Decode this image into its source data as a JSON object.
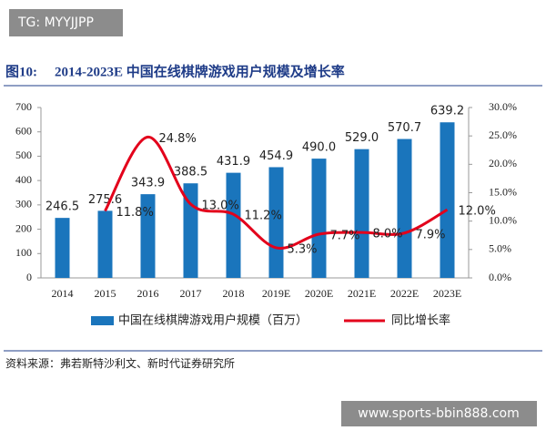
{
  "overlays": {
    "top_left": "TG: MYYJJPP",
    "bottom_right": "www.sports-bbin888.com"
  },
  "chart_data": {
    "type": "combo",
    "figure_label": "图10:",
    "title": "2014-2023E 中国在线棋牌游戏用户规模及增长率",
    "source": "资料来源：弗若斯特沙利文、新时代证券研究所",
    "categories": [
      "2014",
      "2015",
      "2016",
      "2017",
      "2018",
      "2019E",
      "2020E",
      "2021E",
      "2022E",
      "2023E"
    ],
    "series": [
      {
        "name": "中国在线棋牌游戏用户规模（百万）",
        "type": "bar",
        "color": "#1a75bc",
        "values": [
          246.5,
          275.6,
          343.9,
          388.5,
          431.9,
          454.9,
          490.0,
          529.0,
          570.7,
          639.2
        ],
        "value_labels": [
          "246.5",
          "275.6",
          "343.9",
          "388.5",
          "431.9",
          "454.9",
          "490.0",
          "529.0",
          "570.7",
          "639.2"
        ]
      },
      {
        "name": "同比增长率",
        "type": "line",
        "axis": "y2",
        "color": "#e3001b",
        "values": [
          null,
          11.8,
          24.8,
          13.0,
          11.2,
          5.3,
          7.7,
          8.0,
          7.9,
          12.0
        ],
        "value_labels": [
          null,
          "11.8%",
          "24.8%",
          "13.0%",
          "11.2%",
          "5.3%",
          "7.7%",
          "8.0%",
          "7.9%",
          "12.0%"
        ]
      }
    ],
    "ylim": [
      0,
      700
    ],
    "yticks": [
      0,
      100,
      200,
      300,
      400,
      500,
      600,
      700
    ],
    "y2lim": [
      0,
      30
    ],
    "y2ticks": [
      {
        "value": 0,
        "label": "0.0%"
      },
      {
        "value": 5,
        "label": "5.0%"
      },
      {
        "value": 10,
        "label": "10.0%"
      },
      {
        "value": 15,
        "label": "15.0%"
      },
      {
        "value": 20,
        "label": "20.0%"
      },
      {
        "value": 25,
        "label": "25.0%"
      },
      {
        "value": 30,
        "label": "30.0%"
      }
    ],
    "grid": false,
    "legend": "bottom"
  }
}
